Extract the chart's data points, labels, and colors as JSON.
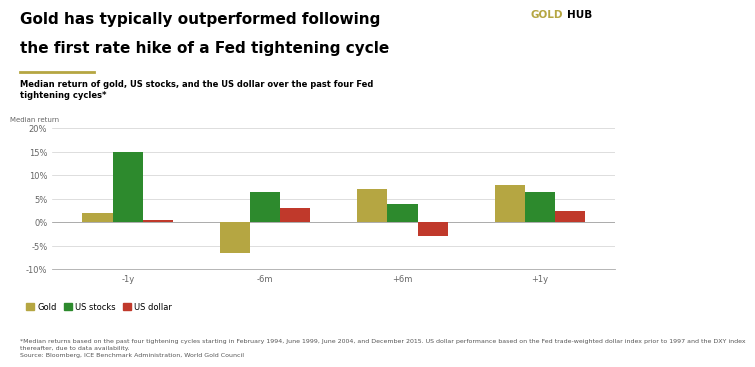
{
  "title_line1": "Gold has typically outperformed following",
  "title_line2": "the first rate hike of a Fed tightening cycle",
  "subtitle": "Median return of gold, US stocks, and the US dollar over the past four Fed\ntightening cycles*",
  "ylabel": "Median return",
  "categories": [
    "-1y",
    "-6m",
    "+6m",
    "+1y"
  ],
  "gold_values": [
    2.0,
    -6.5,
    7.0,
    8.0
  ],
  "stocks_values": [
    15.0,
    6.5,
    4.0,
    6.5
  ],
  "dollar_values": [
    0.4,
    3.0,
    -3.0,
    2.5
  ],
  "gold_color": "#b5a642",
  "stocks_color": "#2d8a2d",
  "dollar_color": "#c0392b",
  "ylim": [
    -10,
    20
  ],
  "yticks": [
    -10,
    -5,
    0,
    5,
    10,
    15,
    20
  ],
  "footnote_line1": "*Median returns based on the past four tightening cycles starting in February 1994, June 1999, June 2004, and December 2015. US dollar performance based on the Fed trade-weighted dollar index prior to 1997 and the DXY index",
  "footnote_line2": "thereafter, due to data availability.",
  "footnote_line3": "Source: Bloomberg, ICE Benchmark Administration, World Gold Council",
  "background_color": "#ffffff",
  "bar_width": 0.22,
  "grid_color": "#d0d0d0",
  "title_fontsize": 11,
  "subtitle_fontsize": 6,
  "tick_fontsize": 6,
  "ylabel_fontsize": 5,
  "legend_fontsize": 6,
  "footnote_fontsize": 4.5
}
